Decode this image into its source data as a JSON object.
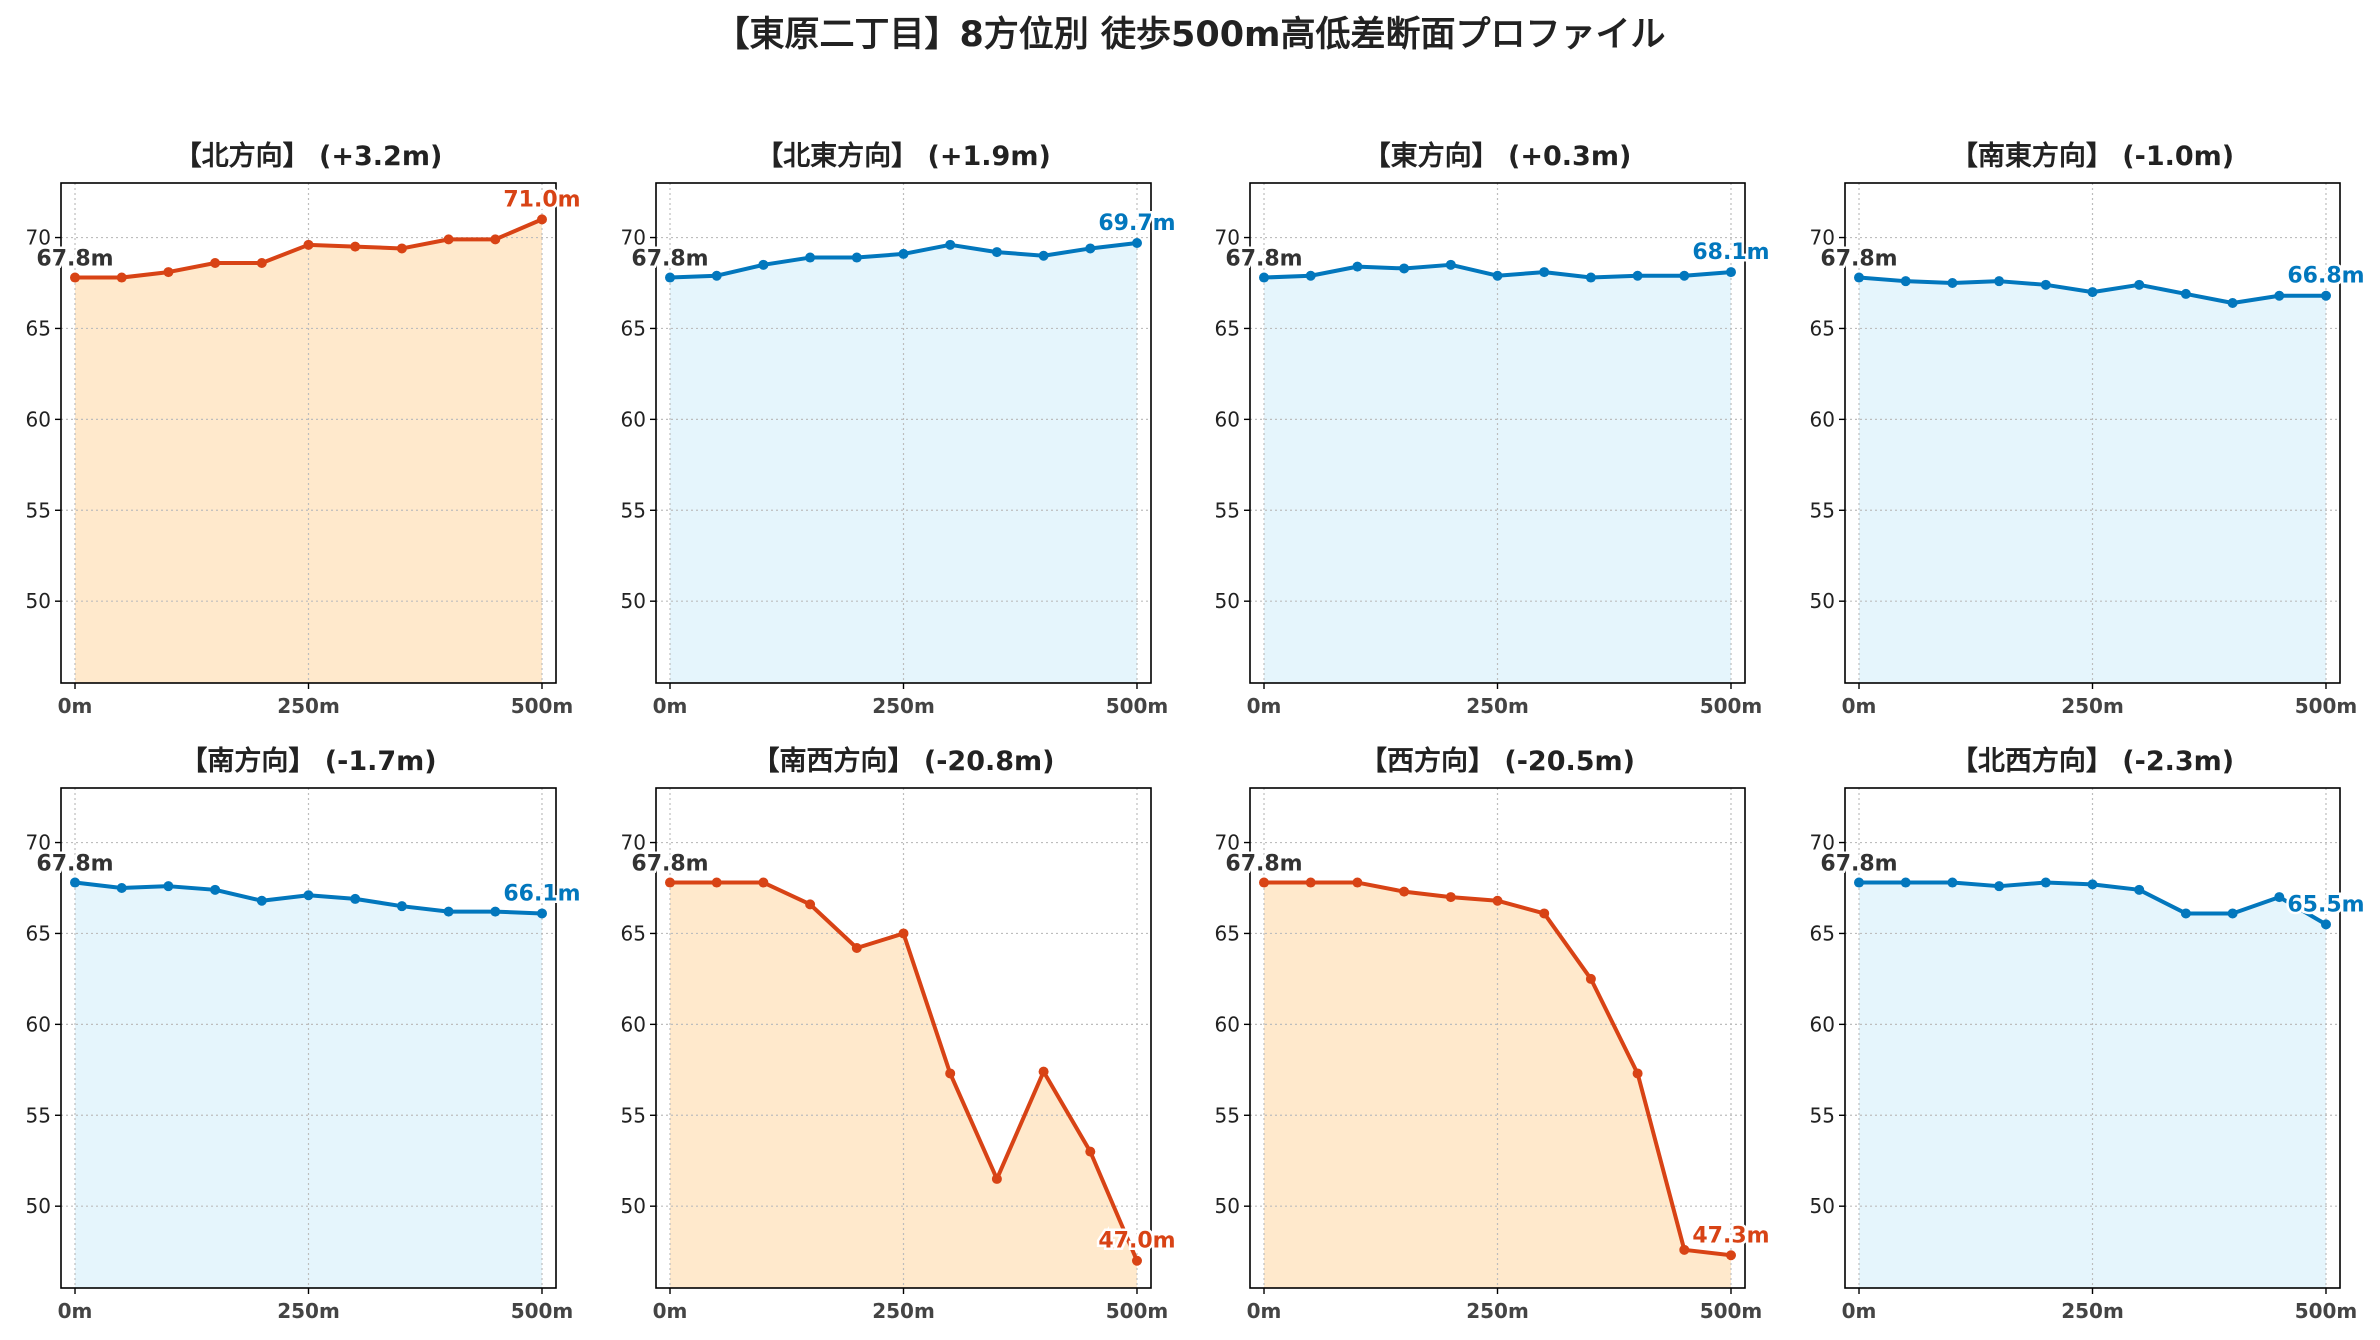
{
  "figure": {
    "title": "【東原二丁目】8方位別 徒歩500m高低差断面プロファイル"
  },
  "colors": {
    "up": "#d84315",
    "down": "#0277bd",
    "up_fill": "#ffe9cc",
    "down_fill": "#e5f5fc",
    "start_label": "#333333",
    "axis": "#000000",
    "grid": "#bdbdbd"
  },
  "chart_data": [
    {
      "type": "area",
      "title": "【北方向】 (+3.2m)",
      "trend": "up",
      "x": [
        0,
        50,
        100,
        150,
        200,
        250,
        300,
        350,
        400,
        450,
        500
      ],
      "series": [
        {
          "values": [
            67.8,
            67.8,
            68.1,
            68.6,
            68.6,
            69.6,
            69.5,
            69.4,
            69.9,
            69.9,
            71.0
          ]
        }
      ],
      "xticks": [
        "0m",
        "250m",
        "500m"
      ],
      "yticks": [
        50,
        55,
        60,
        65,
        70
      ],
      "xlim": [
        -15,
        515
      ],
      "ylim": [
        45.5,
        73.0
      ],
      "grid": true,
      "start_label": "67.8m",
      "end_label": "71.0m"
    },
    {
      "type": "area",
      "title": "【北東方向】 (+1.9m)",
      "trend": "down",
      "x": [
        0,
        50,
        100,
        150,
        200,
        250,
        300,
        350,
        400,
        450,
        500
      ],
      "series": [
        {
          "values": [
            67.8,
            67.9,
            68.5,
            68.9,
            68.9,
            69.1,
            69.6,
            69.2,
            69.0,
            69.4,
            69.7
          ]
        }
      ],
      "xticks": [
        "0m",
        "250m",
        "500m"
      ],
      "yticks": [
        50,
        55,
        60,
        65,
        70
      ],
      "xlim": [
        -15,
        515
      ],
      "ylim": [
        45.5,
        73.0
      ],
      "grid": true,
      "start_label": "67.8m",
      "end_label": "69.7m"
    },
    {
      "type": "area",
      "title": "【東方向】 (+0.3m)",
      "trend": "down",
      "x": [
        0,
        50,
        100,
        150,
        200,
        250,
        300,
        350,
        400,
        450,
        500
      ],
      "series": [
        {
          "values": [
            67.8,
            67.9,
            68.4,
            68.3,
            68.5,
            67.9,
            68.1,
            67.8,
            67.9,
            67.9,
            68.1
          ]
        }
      ],
      "xticks": [
        "0m",
        "250m",
        "500m"
      ],
      "yticks": [
        50,
        55,
        60,
        65,
        70
      ],
      "xlim": [
        -15,
        515
      ],
      "ylim": [
        45.5,
        73.0
      ],
      "grid": true,
      "start_label": "67.8m",
      "end_label": "68.1m"
    },
    {
      "type": "area",
      "title": "【南東方向】 (-1.0m)",
      "trend": "down",
      "x": [
        0,
        50,
        100,
        150,
        200,
        250,
        300,
        350,
        400,
        450,
        500
      ],
      "series": [
        {
          "values": [
            67.8,
            67.6,
            67.5,
            67.6,
            67.4,
            67.0,
            67.4,
            66.9,
            66.4,
            66.8,
            66.8
          ]
        }
      ],
      "xticks": [
        "0m",
        "250m",
        "500m"
      ],
      "yticks": [
        50,
        55,
        60,
        65,
        70
      ],
      "xlim": [
        -15,
        515
      ],
      "ylim": [
        45.5,
        73.0
      ],
      "grid": true,
      "start_label": "67.8m",
      "end_label": "66.8m"
    },
    {
      "type": "area",
      "title": "【南方向】 (-1.7m)",
      "trend": "down",
      "x": [
        0,
        50,
        100,
        150,
        200,
        250,
        300,
        350,
        400,
        450,
        500
      ],
      "series": [
        {
          "values": [
            67.8,
            67.5,
            67.6,
            67.4,
            66.8,
            67.1,
            66.9,
            66.5,
            66.2,
            66.2,
            66.1
          ]
        }
      ],
      "xticks": [
        "0m",
        "250m",
        "500m"
      ],
      "yticks": [
        50,
        55,
        60,
        65,
        70
      ],
      "xlim": [
        -15,
        515
      ],
      "ylim": [
        45.5,
        73.0
      ],
      "grid": true,
      "start_label": "67.8m",
      "end_label": "66.1m"
    },
    {
      "type": "area",
      "title": "【南西方向】 (-20.8m)",
      "trend": "up",
      "x": [
        0,
        50,
        100,
        150,
        200,
        250,
        300,
        350,
        400,
        450,
        500
      ],
      "series": [
        {
          "values": [
            67.8,
            67.8,
            67.8,
            66.6,
            64.2,
            65.0,
            57.3,
            51.5,
            57.4,
            53.0,
            47.0
          ]
        }
      ],
      "xticks": [
        "0m",
        "250m",
        "500m"
      ],
      "yticks": [
        50,
        55,
        60,
        65,
        70
      ],
      "xlim": [
        -15,
        515
      ],
      "ylim": [
        45.5,
        73.0
      ],
      "grid": true,
      "start_label": "67.8m",
      "end_label": "47.0m"
    },
    {
      "type": "area",
      "title": "【西方向】 (-20.5m)",
      "trend": "up",
      "x": [
        0,
        50,
        100,
        150,
        200,
        250,
        300,
        350,
        400,
        450,
        500
      ],
      "series": [
        {
          "values": [
            67.8,
            67.8,
            67.8,
            67.3,
            67.0,
            66.8,
            66.1,
            62.5,
            57.3,
            47.6,
            47.3
          ]
        }
      ],
      "xticks": [
        "0m",
        "250m",
        "500m"
      ],
      "yticks": [
        50,
        55,
        60,
        65,
        70
      ],
      "xlim": [
        -15,
        515
      ],
      "ylim": [
        45.5,
        73.0
      ],
      "grid": true,
      "start_label": "67.8m",
      "end_label": "47.3m"
    },
    {
      "type": "area",
      "title": "【北西方向】 (-2.3m)",
      "trend": "down",
      "x": [
        0,
        50,
        100,
        150,
        200,
        250,
        300,
        350,
        400,
        450,
        500
      ],
      "series": [
        {
          "values": [
            67.8,
            67.8,
            67.8,
            67.6,
            67.8,
            67.7,
            67.4,
            66.1,
            66.1,
            67.0,
            65.5
          ]
        }
      ],
      "xticks": [
        "0m",
        "250m",
        "500m"
      ],
      "yticks": [
        50,
        55,
        60,
        65,
        70
      ],
      "xlim": [
        -15,
        515
      ],
      "ylim": [
        45.5,
        73.0
      ],
      "grid": true,
      "start_label": "67.8m",
      "end_label": "65.5m"
    }
  ]
}
